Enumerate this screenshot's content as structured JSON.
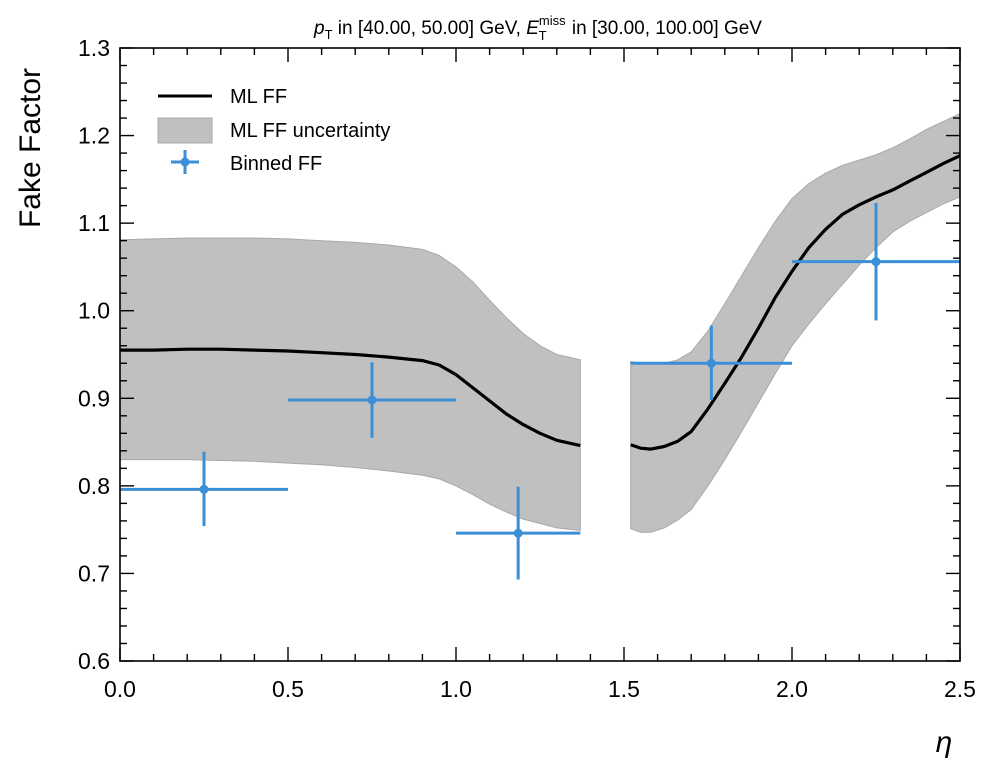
{
  "chart_data": {
    "type": "line",
    "title": {
      "pt_sym": "p",
      "pt_sub": "T",
      "pt_rest": " in [40.00, 50.00] GeV, ",
      "met_sym": "E",
      "met_sub": "T",
      "met_sup": "miss",
      "met_rest": " in [30.00, 100.00] GeV"
    },
    "xlabel": "η",
    "ylabel": "Fake Factor",
    "xlim": [
      0.0,
      2.5
    ],
    "ylim": [
      0.6,
      1.3
    ],
    "xticks": [
      "0.0",
      "0.5",
      "1.0",
      "1.5",
      "2.0",
      "2.5"
    ],
    "yticks": [
      "0.6",
      "0.7",
      "0.8",
      "0.9",
      "1.0",
      "1.1",
      "1.2",
      "1.3"
    ],
    "legend": {
      "position": "top-left",
      "entries": [
        "ML FF",
        "ML FF uncertainty",
        "Binned FF"
      ]
    },
    "colors": {
      "line": "#000000",
      "band": "#c0c0c0",
      "band_edge": "#a8a8a8",
      "binned": "#3a8fd6"
    },
    "series": [
      {
        "name": "ML FF",
        "segments": [
          {
            "x": [
              0.0,
              0.1,
              0.2,
              0.3,
              0.4,
              0.5,
              0.6,
              0.7,
              0.8,
              0.9,
              0.95,
              1.0,
              1.05,
              1.1,
              1.15,
              1.2,
              1.25,
              1.3,
              1.37
            ],
            "y": [
              0.955,
              0.955,
              0.956,
              0.956,
              0.955,
              0.954,
              0.952,
              0.95,
              0.947,
              0.943,
              0.938,
              0.927,
              0.912,
              0.897,
              0.882,
              0.87,
              0.86,
              0.852,
              0.846
            ],
            "lo": [
              0.83,
              0.83,
              0.83,
              0.829,
              0.828,
              0.826,
              0.824,
              0.821,
              0.817,
              0.812,
              0.808,
              0.8,
              0.79,
              0.779,
              0.77,
              0.762,
              0.757,
              0.752,
              0.749
            ],
            "hi": [
              1.081,
              1.082,
              1.083,
              1.083,
              1.083,
              1.082,
              1.08,
              1.078,
              1.075,
              1.07,
              1.063,
              1.05,
              1.033,
              1.012,
              0.992,
              0.974,
              0.96,
              0.95,
              0.944
            ]
          },
          {
            "x": [
              1.52,
              1.55,
              1.58,
              1.62,
              1.66,
              1.7,
              1.75,
              1.8,
              1.85,
              1.9,
              1.95,
              2.0,
              2.05,
              2.1,
              2.15,
              2.2,
              2.25,
              2.3,
              2.35,
              2.4,
              2.45,
              2.5
            ],
            "y": [
              0.847,
              0.843,
              0.842,
              0.845,
              0.851,
              0.862,
              0.888,
              0.917,
              0.947,
              0.98,
              1.015,
              1.045,
              1.072,
              1.093,
              1.11,
              1.121,
              1.13,
              1.138,
              1.148,
              1.158,
              1.168,
              1.177
            ],
            "lo": [
              0.751,
              0.747,
              0.747,
              0.752,
              0.761,
              0.773,
              0.8,
              0.83,
              0.862,
              0.895,
              0.928,
              0.96,
              0.985,
              1.008,
              1.03,
              1.052,
              1.072,
              1.09,
              1.102,
              1.112,
              1.122,
              1.13
            ],
            "hi": [
              0.942,
              0.94,
              0.939,
              0.94,
              0.944,
              0.953,
              0.977,
              1.008,
              1.04,
              1.072,
              1.102,
              1.128,
              1.145,
              1.157,
              1.166,
              1.172,
              1.178,
              1.186,
              1.196,
              1.207,
              1.216,
              1.225
            ]
          }
        ]
      },
      {
        "name": "Binned FF",
        "type": "errorbar",
        "points": [
          {
            "x": 0.25,
            "xlo": 0.0,
            "xhi": 0.5,
            "y": 0.796,
            "ylo": 0.754,
            "yhi": 0.839
          },
          {
            "x": 0.75,
            "xlo": 0.5,
            "xhi": 1.0,
            "y": 0.898,
            "ylo": 0.855,
            "yhi": 0.941
          },
          {
            "x": 1.185,
            "xlo": 1.0,
            "xhi": 1.37,
            "y": 0.746,
            "ylo": 0.693,
            "yhi": 0.799
          },
          {
            "x": 1.76,
            "xlo": 1.52,
            "xhi": 2.0,
            "y": 0.94,
            "ylo": 0.898,
            "yhi": 0.983
          },
          {
            "x": 2.25,
            "xlo": 2.0,
            "xhi": 2.5,
            "y": 1.056,
            "ylo": 0.989,
            "yhi": 1.123
          }
        ]
      }
    ]
  }
}
